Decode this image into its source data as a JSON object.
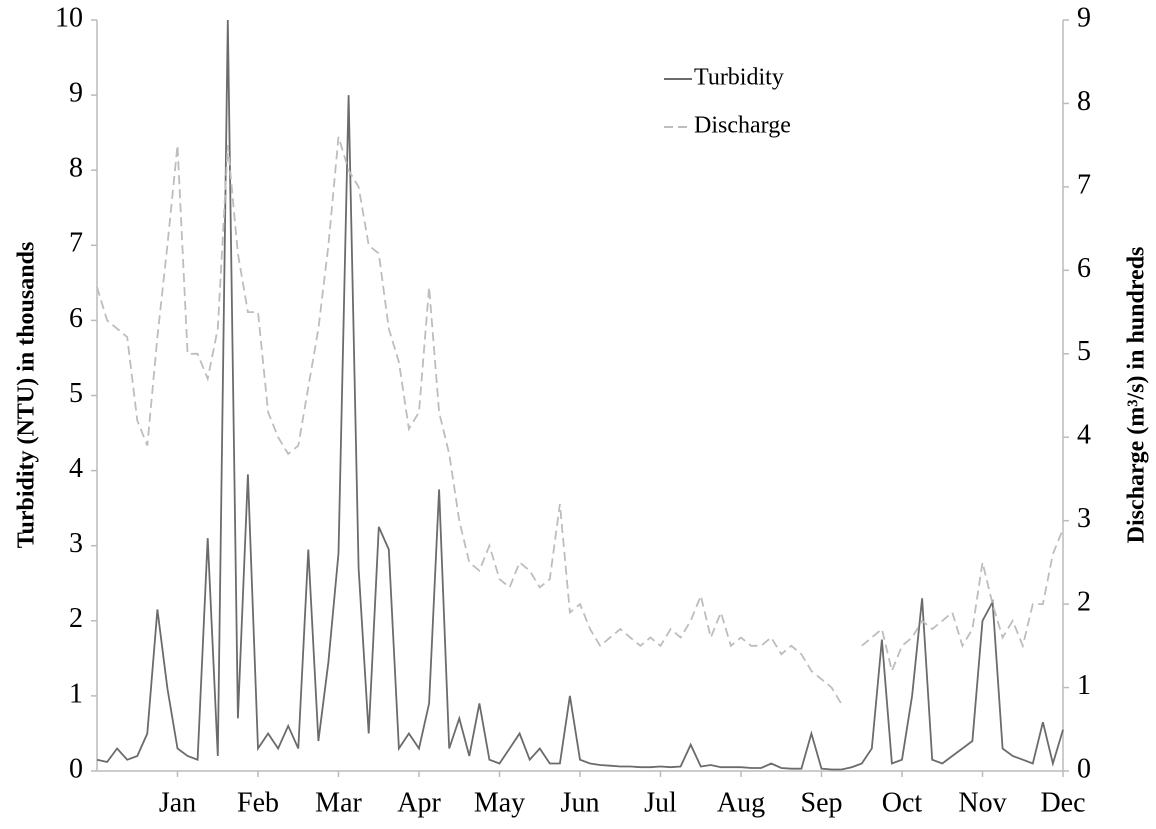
{
  "chart_data": {
    "type": "line",
    "y_label": "Turbidity (NTU) in thousands",
    "y2_label": "Discharge (m³/s) in hundreds",
    "xlim": [
      0,
      12
    ],
    "xticks": [
      {
        "value": 1,
        "label": "Jan"
      },
      {
        "value": 2,
        "label": "Feb"
      },
      {
        "value": 3,
        "label": "Mar"
      },
      {
        "value": 4,
        "label": "Apr"
      },
      {
        "value": 5,
        "label": "May"
      },
      {
        "value": 6,
        "label": "Jun"
      },
      {
        "value": 7,
        "label": "Jul"
      },
      {
        "value": 8,
        "label": "Aug"
      },
      {
        "value": 9,
        "label": "Sep"
      },
      {
        "value": 10,
        "label": "Oct"
      },
      {
        "value": 11,
        "label": "Nov"
      },
      {
        "value": 12,
        "label": "Dec"
      }
    ],
    "ylim": [
      0,
      10
    ],
    "yticks": [
      0,
      1,
      2,
      3,
      4,
      5,
      6,
      7,
      8,
      9,
      10
    ],
    "y2lim": [
      0,
      9
    ],
    "y2ticks": [
      0,
      1,
      2,
      3,
      4,
      5,
      6,
      7,
      8,
      9
    ],
    "x": [
      0,
      0.125,
      0.25,
      0.375,
      0.5,
      0.625,
      0.75,
      0.875,
      1,
      1.125,
      1.25,
      1.375,
      1.5,
      1.625,
      1.75,
      1.875,
      2,
      2.125,
      2.25,
      2.375,
      2.5,
      2.625,
      2.75,
      2.875,
      3,
      3.125,
      3.25,
      3.375,
      3.5,
      3.625,
      3.75,
      3.875,
      4,
      4.125,
      4.25,
      4.375,
      4.5,
      4.625,
      4.75,
      4.875,
      5,
      5.125,
      5.25,
      5.375,
      5.5,
      5.625,
      5.75,
      5.875,
      6,
      6.125,
      6.25,
      6.375,
      6.5,
      6.625,
      6.75,
      6.875,
      7,
      7.125,
      7.25,
      7.375,
      7.5,
      7.625,
      7.75,
      7.875,
      8,
      8.125,
      8.25,
      8.375,
      8.5,
      8.625,
      8.75,
      8.875,
      9,
      9.125,
      9.25,
      9.375,
      9.5,
      9.625,
      9.75,
      9.875,
      10,
      10.125,
      10.25,
      10.375,
      10.5,
      10.625,
      10.75,
      10.875,
      11,
      11.125,
      11.25,
      11.375,
      11.5,
      11.625,
      11.75,
      11.875,
      12
    ],
    "legend": "top-center",
    "series": [
      {
        "name": "Turbidity",
        "color": "#6b6b6b",
        "style": "solid",
        "values": [
          0.15,
          0.12,
          0.3,
          0.15,
          0.2,
          0.5,
          2.15,
          1.1,
          0.3,
          0.2,
          0.15,
          3.1,
          0.2,
          10,
          0.7,
          3.95,
          0.3,
          0.5,
          0.3,
          0.6,
          0.3,
          2.95,
          0.4,
          1.45,
          2.9,
          9,
          2.7,
          0.5,
          3.25,
          2.95,
          0.3,
          0.5,
          0.3,
          0.9,
          3.75,
          0.3,
          0.7,
          0.2,
          0.9,
          0.15,
          0.1,
          0.3,
          0.5,
          0.15,
          0.3,
          0.1,
          0.1,
          1,
          0.15,
          0.1,
          0.08,
          0.07,
          0.06,
          0.06,
          0.05,
          0.05,
          0.06,
          0.05,
          0.06,
          0.35,
          0.06,
          0.08,
          0.05,
          0.05,
          0.05,
          0.04,
          0.04,
          0.1,
          0.04,
          0.03,
          0.03,
          0.5,
          0.03,
          0.02,
          0.02,
          0.05,
          0.1,
          0.3,
          1.75,
          0.1,
          0.15,
          1,
          2.3,
          0.15,
          0.1,
          0.2,
          0.3,
          0.4,
          2,
          2.25,
          0.3,
          0.2,
          0.15,
          0.1,
          0.65,
          0.1,
          0.55
        ]
      },
      {
        "name": "Discharge",
        "color": "#bdbdbd",
        "style": "dashed",
        "axis": "y2",
        "values": [
          5.8,
          5.4,
          5.3,
          5.2,
          4.2,
          3.9,
          5.2,
          6.3,
          7.5,
          5,
          5,
          4.7,
          5.3,
          7.5,
          6.2,
          5.5,
          5.5,
          4.3,
          4,
          3.8,
          3.9,
          4.6,
          5.3,
          6.3,
          7.6,
          7.2,
          7,
          6.3,
          6.2,
          5.3,
          4.9,
          4.1,
          4.3,
          5.8,
          4.3,
          3.8,
          3,
          2.5,
          2.4,
          2.7,
          2.3,
          2.2,
          2.5,
          2.4,
          2.2,
          2.3,
          3.2,
          1.9,
          2,
          1.7,
          1.5,
          1.6,
          1.7,
          1.6,
          1.5,
          1.6,
          1.5,
          1.7,
          1.6,
          1.8,
          2.1,
          1.6,
          1.9,
          1.5,
          1.6,
          1.5,
          1.5,
          1.6,
          1.4,
          1.5,
          1.4,
          1.2,
          1.1,
          1,
          0.8,
          null,
          1.5,
          1.6,
          1.7,
          1.2,
          1.5,
          1.6,
          1.8,
          1.7,
          1.8,
          1.9,
          1.5,
          1.7,
          2.5,
          2,
          1.6,
          1.8,
          1.5,
          2,
          2,
          2.6,
          2.9
        ]
      }
    ]
  }
}
